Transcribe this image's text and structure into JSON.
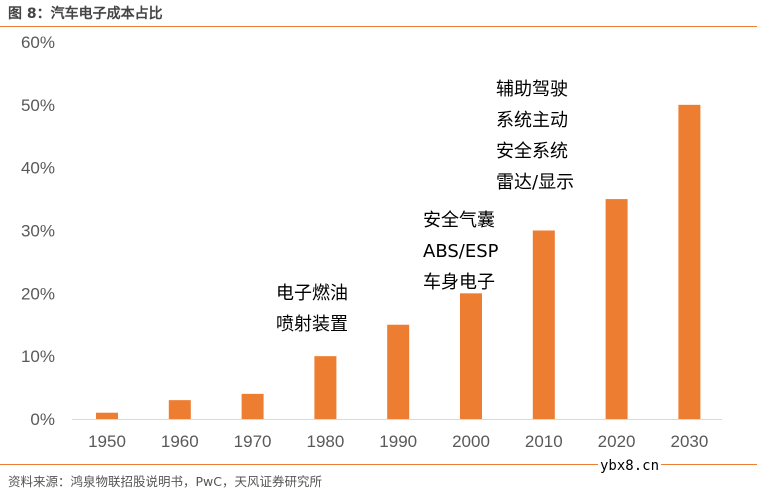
{
  "title": "图 8：汽车电子成本占比",
  "source": "资料来源：鸿泉物联招股说明书，PwC，天风证券研究所",
  "watermark": "ybx8.cn",
  "chart_data": {
    "type": "bar",
    "categories": [
      "1950",
      "1960",
      "1970",
      "1980",
      "1990",
      "2000",
      "2010",
      "2020",
      "2030"
    ],
    "values": [
      1,
      3,
      4,
      10,
      15,
      20,
      30,
      35,
      50
    ],
    "unit": "%",
    "ylim": [
      0,
      60
    ],
    "yticks": [
      "0%",
      "10%",
      "20%",
      "30%",
      "40%",
      "50%",
      "60%"
    ],
    "grid": false,
    "bar_color": "#ed7d31",
    "annotations": [
      {
        "category": "1980",
        "lines": [
          "电子燃油",
          "喷射装置"
        ]
      },
      {
        "category": "2000",
        "lines": [
          "安全气囊",
          "ABS/ESP",
          "车身电子"
        ]
      },
      {
        "category": "2010",
        "lines": [
          "辅助驾驶",
          "系统主动",
          "安全系统",
          "雷达/显示"
        ]
      }
    ]
  }
}
